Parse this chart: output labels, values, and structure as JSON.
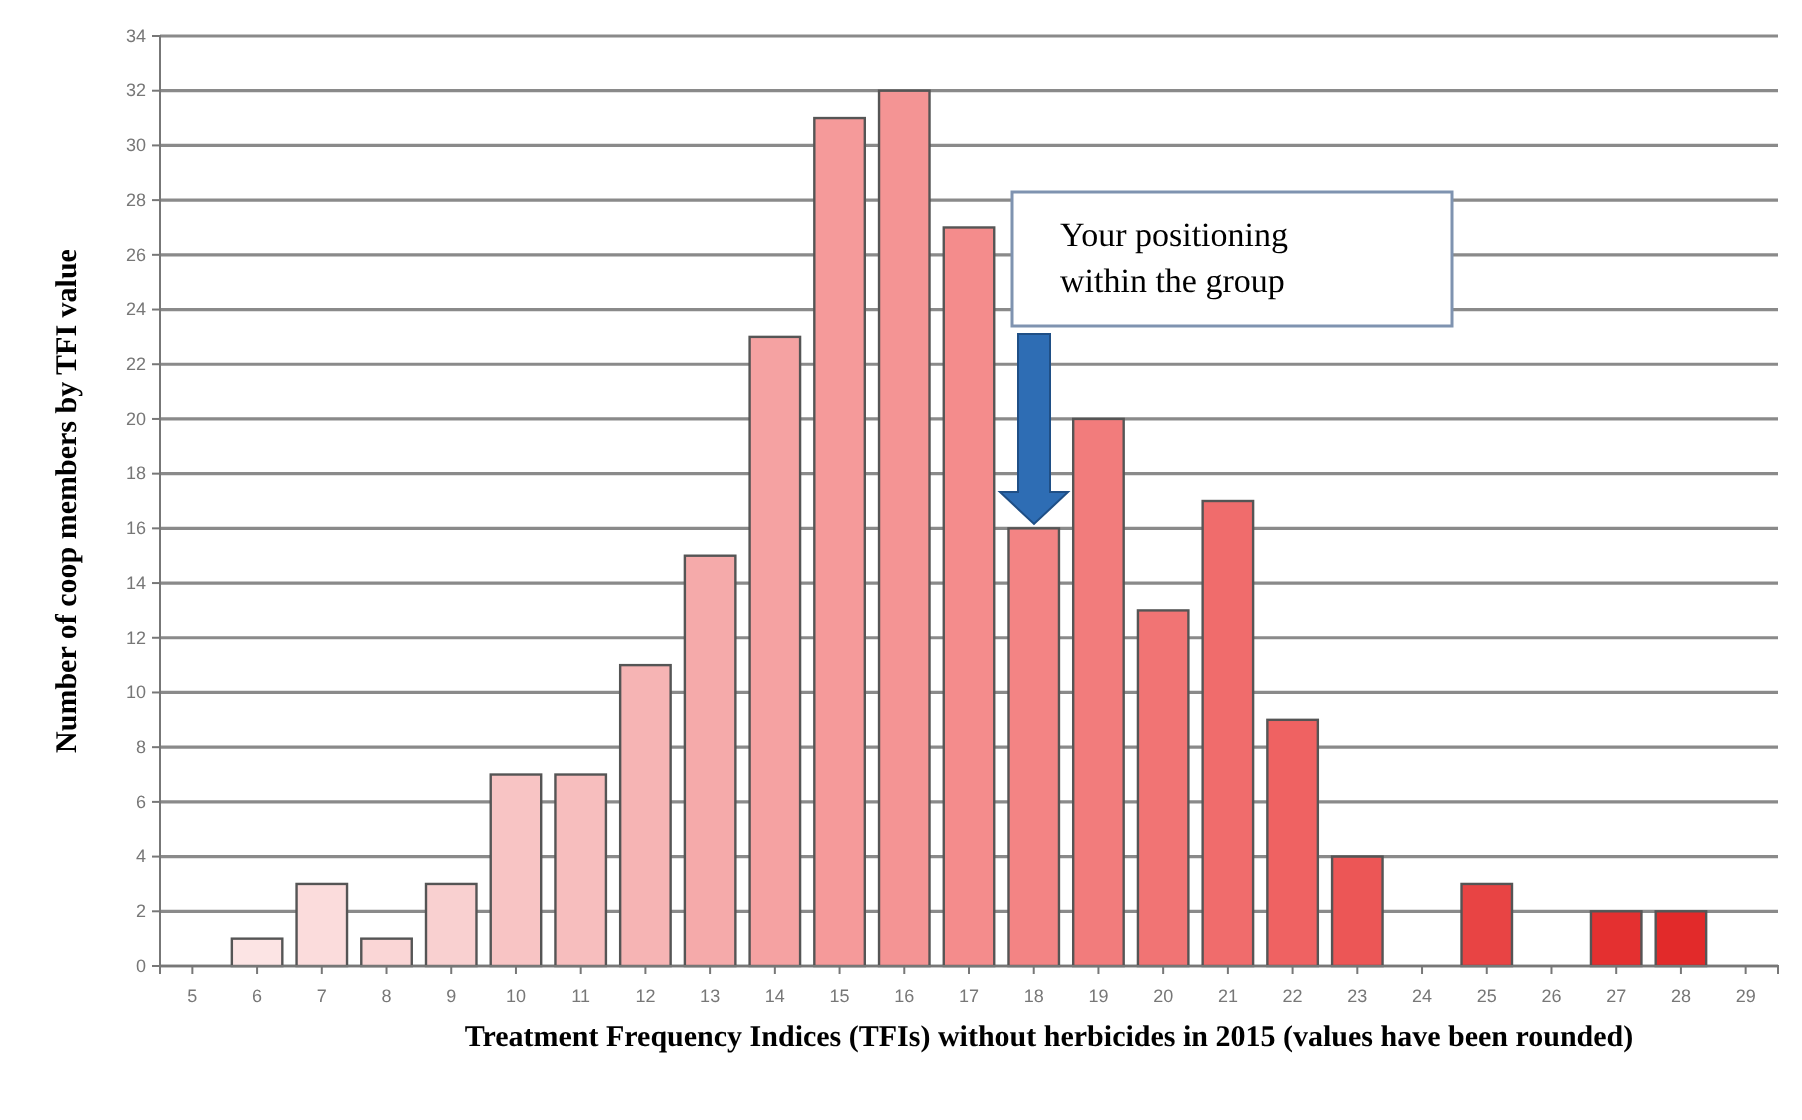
{
  "chart_data": {
    "type": "bar",
    "xlabel": "Treatment Frequency  Indices (TFIs) without herbicides in 2015 (values have been rounded)",
    "ylabel": "Number of coop members by TFI value",
    "categories": [
      "5",
      "6",
      "7",
      "8",
      "9",
      "10",
      "11",
      "12",
      "13",
      "14",
      "15",
      "16",
      "17",
      "18",
      "19",
      "20",
      "21",
      "22",
      "23",
      "24",
      "25",
      "26",
      "27",
      "28",
      "29"
    ],
    "values": [
      0,
      1,
      3,
      1,
      3,
      7,
      7,
      11,
      15,
      23,
      31,
      32,
      27,
      16,
      20,
      13,
      17,
      9,
      4,
      0,
      3,
      0,
      2,
      2,
      0
    ],
    "colors": [
      "#fce8e8",
      "#fce4e4",
      "#fbdcdc",
      "#fad6d6",
      "#f9d0d0",
      "#f8c4c4",
      "#f7bebe",
      "#f6b4b4",
      "#f5aaaa",
      "#f5a2a2",
      "#f59a9a",
      "#f49494",
      "#f48c8c",
      "#f38484",
      "#f27c7c",
      "#f17474",
      "#f06c6c",
      "#ef6262",
      "#ec5656",
      "#ea4c4c",
      "#e84444",
      "#e63a3a",
      "#e43030",
      "#e22a2a",
      "#e02424"
    ],
    "ylim": [
      0,
      34
    ],
    "yticks": [
      0,
      2,
      4,
      6,
      8,
      10,
      12,
      14,
      16,
      18,
      20,
      22,
      24,
      26,
      28,
      30,
      32,
      34
    ],
    "grid": "y",
    "annotations": [
      "Your positioning within the group"
    ]
  }
}
